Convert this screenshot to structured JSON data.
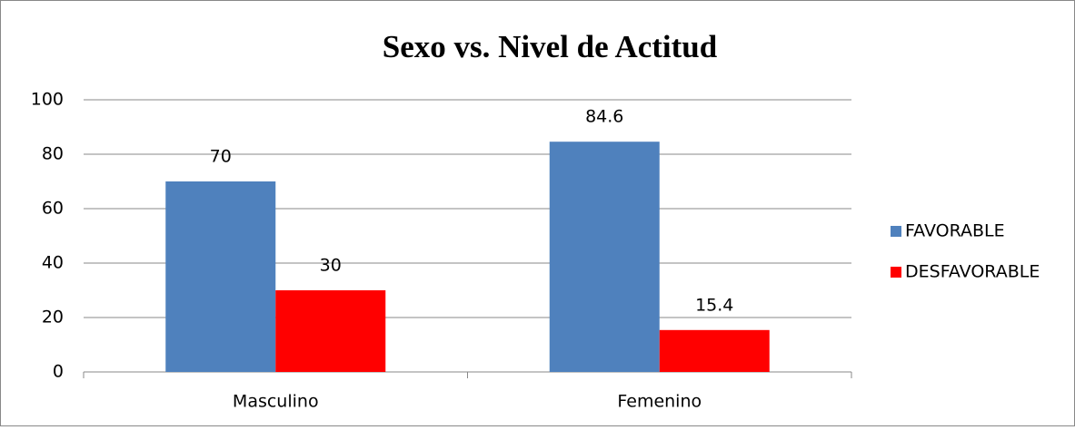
{
  "chart_data": {
    "type": "bar",
    "title": "Sexo vs. Nivel de Actitud",
    "categories": [
      "Masculino",
      "Femenino"
    ],
    "series": [
      {
        "name": "FAVORABLE",
        "color": "#4f81bd",
        "values": [
          70,
          84.6
        ]
      },
      {
        "name": "DESFAVORABLE",
        "color": "#ff0000",
        "values": [
          30,
          15.4
        ]
      }
    ],
    "ylim": [
      0,
      100
    ],
    "yticks": [
      0,
      20,
      40,
      60,
      80,
      100
    ],
    "grid": true,
    "legend": "right"
  }
}
